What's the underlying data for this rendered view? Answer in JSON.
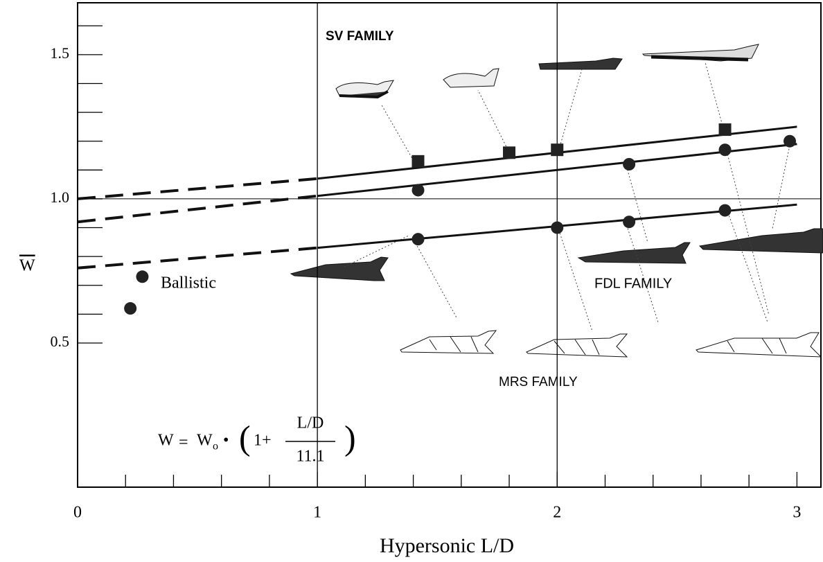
{
  "chart_data": {
    "type": "scatter",
    "xlabel": "Hypersonic L/D",
    "ylabel": "W",
    "xlim": [
      0,
      3.1
    ],
    "ylim": [
      0,
      1.68
    ],
    "xticks": [
      0,
      1,
      2,
      3
    ],
    "yticks": [
      0.5,
      {
        "value": 1,
        "label": "1.0"
      },
      1.5
    ],
    "xminorticks": [
      0.2,
      0.4,
      0.6,
      0.8,
      1.2,
      1.4,
      1.6,
      1.8,
      2.2,
      2.4,
      2.6,
      2.8
    ],
    "yminorticks": [
      0.6,
      0.7,
      0.8,
      0.9,
      1.1,
      1.2,
      1.3,
      1.4,
      1.6
    ],
    "xgrid": [
      1,
      2
    ],
    "ygrid": [
      1
    ],
    "series": [
      {
        "color": "#222",
        "marker": "square",
        "x": [
          1.42,
          1.8,
          2.0,
          2.7
        ],
        "values": [
          1.13,
          1.16,
          1.17,
          1.24
        ],
        "trend_dashed": {
          "x": [
            0,
            1
          ],
          "values": [
            1.0,
            1.07
          ]
        },
        "trend": {
          "x": [
            1,
            3
          ],
          "values": [
            1.07,
            1.25
          ]
        }
      },
      {
        "color": "#222",
        "marker": "circle",
        "x": [
          1.42,
          2.3,
          2.7,
          2.97
        ],
        "values": [
          1.03,
          1.12,
          1.17,
          1.2
        ],
        "trend_dashed": {
          "x": [
            0,
            1
          ],
          "values": [
            0.92,
            1.01
          ]
        },
        "trend": {
          "x": [
            1,
            3
          ],
          "values": [
            1.01,
            1.19
          ]
        }
      },
      {
        "color": "#222",
        "marker": "circle",
        "x": [
          1.42,
          2.0,
          2.3,
          2.7
        ],
        "values": [
          0.86,
          0.9,
          0.92,
          0.96
        ],
        "trend_dashed": {
          "x": [
            0,
            1
          ],
          "values": [
            0.76,
            0.83
          ]
        },
        "trend": {
          "x": [
            1,
            3
          ],
          "values": [
            0.83,
            0.98
          ]
        }
      },
      {
        "color": "#222",
        "marker": "circle",
        "x": [
          0.27,
          0.22
        ],
        "values": [
          0.73,
          0.62
        ]
      }
    ],
    "annotations": {
      "sv": "SV FAMILY",
      "fdl": "FDL FAMILY",
      "mrs": "MRS FAMILY",
      "ballistic": "Ballistic",
      "formula": {
        "lhs": "W",
        "eq": "=",
        "w0": "W",
        "sub": "o",
        "dot": "•",
        "one": "1+",
        "num": "L/D",
        "den": "11.1"
      }
    }
  }
}
